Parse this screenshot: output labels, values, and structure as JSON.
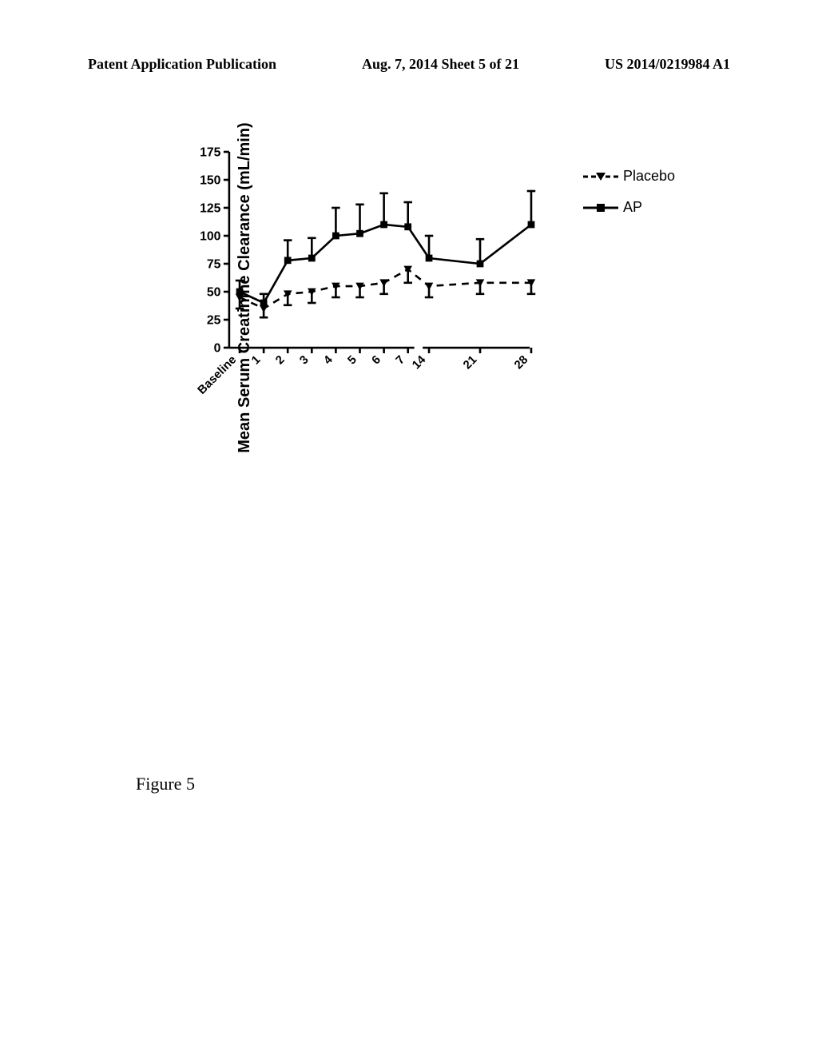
{
  "header": {
    "left": "Patent Application Publication",
    "center": "Aug. 7, 2014  Sheet 5 of 21",
    "right": "US 2014/0219984 A1"
  },
  "figure_caption": "Figure 5",
  "chart": {
    "type": "line",
    "y_label": "Mean Serum Creatinine Clearance (mL/min)",
    "x_categories": [
      "Baseline",
      "1",
      "2",
      "3",
      "4",
      "5",
      "6",
      "7",
      "14",
      "21",
      "28"
    ],
    "ylim": [
      0,
      175
    ],
    "ytick_step": 25,
    "y_ticks": [
      0,
      25,
      50,
      75,
      100,
      125,
      150,
      175
    ],
    "background_color": "#ffffff",
    "axis_color": "#000000",
    "series": [
      {
        "name": "Placebo",
        "label": "Placebo",
        "marker": "triangle-down",
        "line_style": "dashed",
        "color": "#000000",
        "values": [
          45,
          35,
          48,
          50,
          55,
          55,
          58,
          70,
          55,
          58,
          58
        ],
        "error_low": [
          10,
          8,
          10,
          10,
          10,
          10,
          10,
          12,
          10,
          10,
          10
        ]
      },
      {
        "name": "AP",
        "label": "AP",
        "marker": "square",
        "line_style": "solid",
        "color": "#000000",
        "values": [
          50,
          40,
          78,
          80,
          100,
          102,
          110,
          108,
          80,
          75,
          110
        ],
        "error_high": [
          10,
          8,
          18,
          18,
          25,
          26,
          28,
          22,
          20,
          22,
          30
        ]
      }
    ]
  },
  "legend": {
    "items": [
      {
        "label": "Placebo",
        "marker": "triangle-down",
        "dash": true
      },
      {
        "label": "AP",
        "marker": "square",
        "dash": false
      }
    ]
  }
}
